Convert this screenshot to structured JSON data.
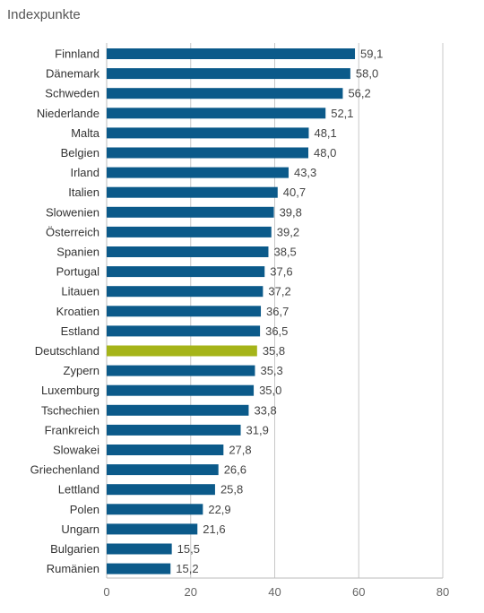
{
  "chart_data": {
    "type": "bar",
    "orientation": "horizontal",
    "title": "Indexpunkte",
    "categories": [
      "Finnland",
      "Dänemark",
      "Schweden",
      "Niederlande",
      "Malta",
      "Belgien",
      "Irland",
      "Italien",
      "Slowenien",
      "Österreich",
      "Spanien",
      "Portugal",
      "Litauen",
      "Kroatien",
      "Estland",
      "Deutschland",
      "Zypern",
      "Luxemburg",
      "Tschechien",
      "Frankreich",
      "Slowakei",
      "Griechenland",
      "Lettland",
      "Polen",
      "Ungarn",
      "Bulgarien",
      "Rumänien"
    ],
    "values": [
      59.1,
      58.0,
      56.2,
      52.1,
      48.1,
      48.0,
      43.3,
      40.7,
      39.8,
      39.2,
      38.5,
      37.6,
      37.2,
      36.7,
      36.5,
      35.8,
      35.3,
      35.0,
      33.8,
      31.9,
      27.8,
      26.6,
      25.8,
      22.9,
      21.6,
      15.5,
      15.2
    ],
    "value_labels": [
      "59,1",
      "58,0",
      "56,2",
      "52,1",
      "48,1",
      "48,0",
      "43,3",
      "40,7",
      "39,8",
      "39,2",
      "38,5",
      "37,6",
      "37,2",
      "36,7",
      "36,5",
      "35,8",
      "35,3",
      "35,0",
      "33,8",
      "31,9",
      "27,8",
      "26,6",
      "25,8",
      "22,9",
      "21,6",
      "15,5",
      "15,2"
    ],
    "xlim": [
      0,
      80
    ],
    "xticks": [
      0,
      20,
      40,
      60,
      80
    ],
    "xtick_labels": [
      "0",
      "20",
      "40",
      "60",
      "80"
    ],
    "grid": true,
    "bar_color": "#0b5a8a",
    "highlight_category": "Deutschland",
    "highlight_color": "#a5b419",
    "legend": false
  }
}
